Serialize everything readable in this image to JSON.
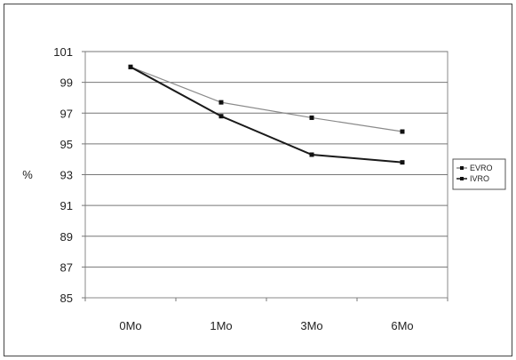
{
  "chart_data": {
    "type": "line",
    "ylabel": "%",
    "categories": [
      "0Mo",
      "1Mo",
      "3Mo",
      "6Mo"
    ],
    "ylim": [
      85,
      101
    ],
    "yticks": [
      101,
      99,
      97,
      95,
      93,
      91,
      89,
      87,
      85
    ],
    "grid": true,
    "legend_position": "right",
    "series": [
      {
        "name": "EVRO",
        "values": [
          100.0,
          97.7,
          96.7,
          95.8
        ],
        "color": "#8a8a8a"
      },
      {
        "name": "IVRO",
        "values": [
          100.0,
          96.8,
          94.3,
          93.8
        ],
        "color": "#1a1a1a"
      }
    ]
  }
}
